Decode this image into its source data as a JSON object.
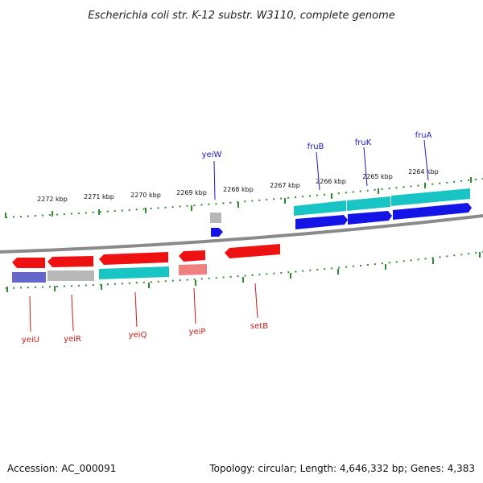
{
  "title": "Escherichia coli str. K-12 substr. W3110, complete genome",
  "footer": {
    "accession": "Accession: AC_000091",
    "summary": "Topology: circular; Length: 4,646,332 bp; Genes: 4,383"
  },
  "colors": {
    "backbone": "#8a8a8a",
    "tick": "#2e8b2e",
    "forward_label": "#1a1acc",
    "reverse_label": "#cc1a1a",
    "forward_gene": "#1414e6",
    "forward_cds": "#18c4c4",
    "reverse_gene": "#ee1111",
    "reverse_cds": "#18c4c4",
    "pseudo": "#b8b8b8",
    "rna_light": "#f08080",
    "purple": "#6666cc"
  },
  "ruler": {
    "labels": [
      "2272 kbp",
      "2271 kbp",
      "2270 kbp",
      "2269 kbp",
      "2268 kbp",
      "2267 kbp",
      "2266 kbp",
      "2265 kbp",
      "2264 kbp"
    ]
  },
  "genes_forward": [
    "yeiW",
    "fruB",
    "fruK",
    "fruA"
  ],
  "genes_reverse": [
    "yeiU",
    "yeiR",
    "yeiQ",
    "yeiP",
    "setB"
  ]
}
